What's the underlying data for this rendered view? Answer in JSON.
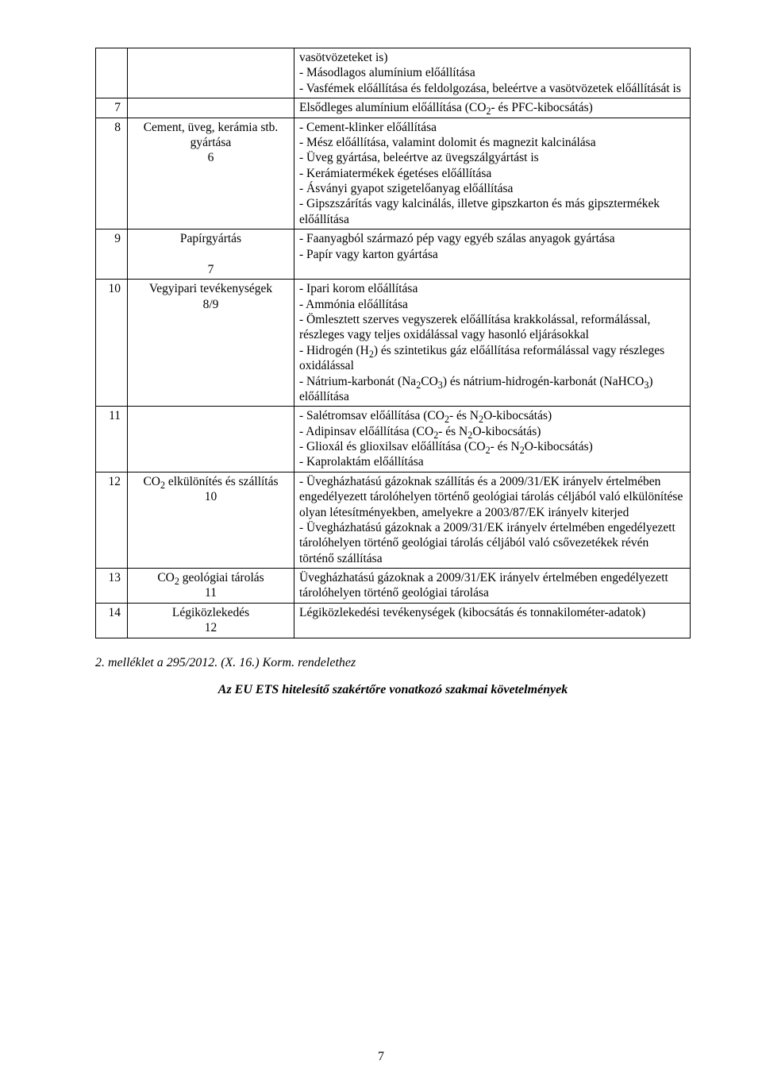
{
  "table": {
    "border_color": "#000000",
    "font_family": "Times New Roman",
    "font_size_pt": 12,
    "rows": [
      {
        "num": "",
        "label_html": "",
        "desc_html": "vasötvözeteket is)<br>- Másodlagos alumínium előállítása<br>- Vasfémek előállítása és feldolgozása, beleértve a vasötvözetek előállítását is"
      },
      {
        "num": "7",
        "label_html": "",
        "desc_html": "Elsődleges alumínium előállítása (CO<sub>2</sub>- és PFC-kibocsátás)"
      },
      {
        "num": "8",
        "label_html": "Cement, üveg, kerámia stb. gyártása<br>6",
        "desc_html": "- Cement-klinker előállítása<br>- Mész előállítása, valamint dolomit és magnezit kalcinálása<br>- Üveg gyártása, beleértve az üvegszálgyártást is<br>- Kerámiatermékek égetéses előállítása<br>- Ásványi gyapot szigetelőanyag előállítása<br>- Gipszszárítás vagy kalcinálás, illetve gipszkarton és más gipsztermékek előállítása"
      },
      {
        "num": "9",
        "label_html": "Papírgyártás<br><br>7",
        "desc_html": "- Faanyagból származó pép vagy egyéb szálas anyagok gyártása<br>- Papír vagy karton gyártása"
      },
      {
        "num": "10",
        "label_html": "Vegyipari tevékenységek<br>8/9",
        "desc_html": "- Ipari korom előállítása<br>- Ammónia előállítása<br>- Ömlesztett szerves vegyszerek előállítása krakkolással, reformálással, részleges vagy teljes oxidálással vagy hasonló eljárásokkal<br>- Hidrogén (H<sub>2</sub>) és szintetikus gáz előállítása reformálással vagy részleges oxidálással<br>- Nátrium-karbonát (Na<sub>2</sub>CO<sub>3</sub>) és nátrium-hidrogén-karbonát (NaHCO<sub>3</sub>) előállítása"
      },
      {
        "num": "11",
        "label_html": "",
        "desc_html": "- Salétromsav előállítása (CO<sub>2</sub>- és N<sub>2</sub>O-kibocsátás)<br>- Adipinsav előállítása (CO<sub>2</sub>- és N<sub>2</sub>O-kibocsátás)<br>- Glioxál és glioxilsav előállítása (CO<sub>2</sub>- és N<sub>2</sub>O-kibocsátás)<br>- Kaprolaktám előállítása"
      },
      {
        "num": "12",
        "label_html": "CO<sub>2</sub> elkülönítés és szállítás<br>10",
        "desc_html": "- Üvegházhatású gázoknak szállítás és a 2009/31/EK irányelv értelmében engedélyezett tárolóhelyen történő geológiai tárolás céljából való elkülönítése olyan létesítményekben, amelyekre a 2003/87/EK irányelv kiterjed<br>- Üvegházhatású gázoknak a 2009/31/EK irányelv értelmében engedélyezett tárolóhelyen történő geológiai tárolás céljából való csővezetékek révén történő szállítása"
      },
      {
        "num": "13",
        "label_html": "CO<sub>2</sub> geológiai tárolás<br>11",
        "desc_html": "Üvegházhatású gázoknak a 2009/31/EK irányelv értelmében engedélyezett tárolóhelyen történő geológiai tárolása"
      },
      {
        "num": "14",
        "label_html": "Légiközlekedés<br>12",
        "desc_html": "Légiközlekedési tevékenységek (kibocsátás és tonnakilométer-adatok)"
      }
    ]
  },
  "section2_ref": "2. melléklet a 295/2012. (X. 16.) Korm. rendelethez",
  "section2_title": "Az EU ETS hitelesítő szakértőre vonatkozó szakmai követelmények",
  "page_number": "7"
}
